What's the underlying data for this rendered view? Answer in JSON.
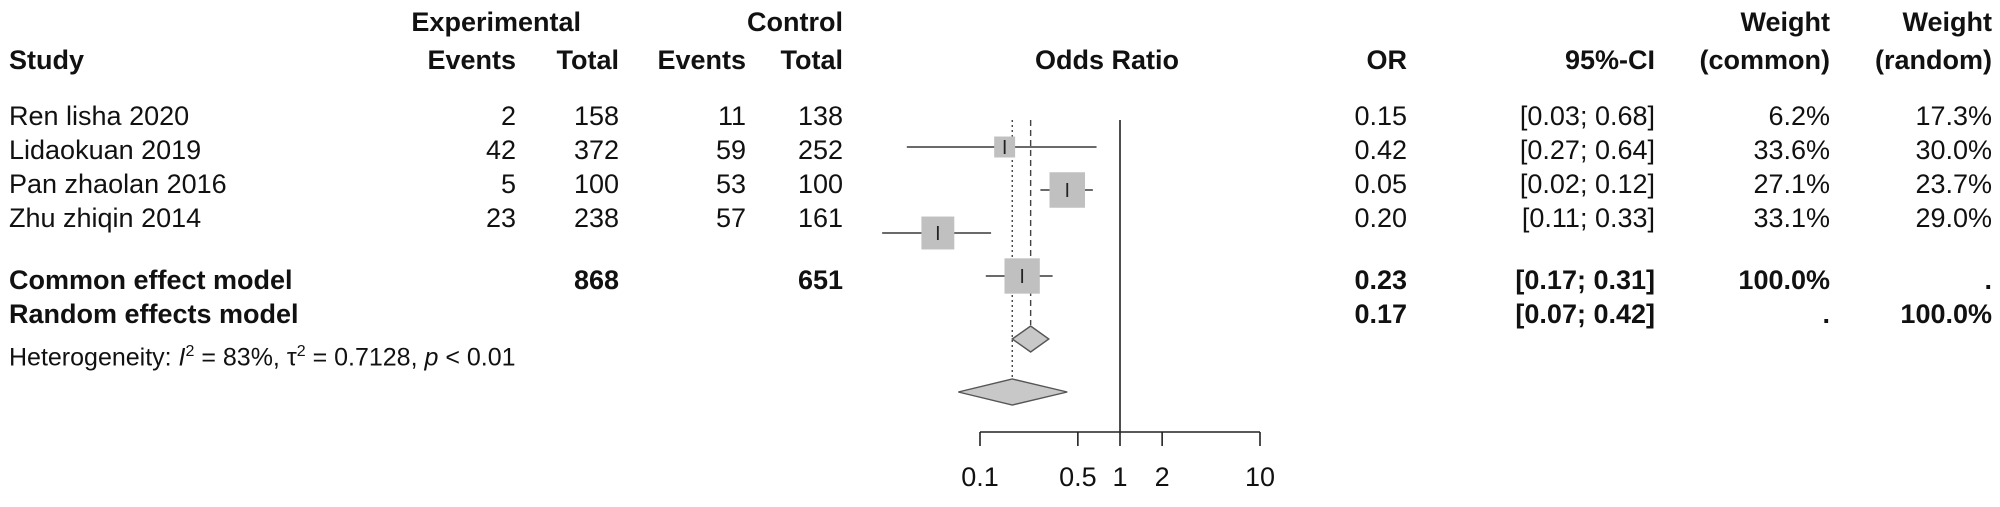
{
  "headers": {
    "study": "Study",
    "experimental": "Experimental",
    "control": "Control",
    "events": "Events",
    "total": "Total",
    "odds_ratio": "Odds Ratio",
    "or": "OR",
    "ci": "95%-CI",
    "weight": "Weight",
    "common": "(common)",
    "random": "(random)"
  },
  "studies": [
    {
      "name": "Ren lisha 2020",
      "exp_events": "2",
      "exp_total": "158",
      "ctrl_events": "11",
      "ctrl_total": "138",
      "or": "0.15",
      "ci": "[0.03; 0.68]",
      "w_common": "6.2%",
      "w_random": "17.3%"
    },
    {
      "name": "Lidaokuan 2019",
      "exp_events": "42",
      "exp_total": "372",
      "ctrl_events": "59",
      "ctrl_total": "252",
      "or": "0.42",
      "ci": "[0.27; 0.64]",
      "w_common": "33.6%",
      "w_random": "30.0%"
    },
    {
      "name": "Pan zhaolan 2016",
      "exp_events": "5",
      "exp_total": "100",
      "ctrl_events": "53",
      "ctrl_total": "100",
      "or": "0.05",
      "ci": "[0.02; 0.12]",
      "w_common": "27.1%",
      "w_random": "23.7%"
    },
    {
      "name": "Zhu zhiqin 2014",
      "exp_events": "23",
      "exp_total": "238",
      "ctrl_events": "57",
      "ctrl_total": "161",
      "or": "0.20",
      "ci": "[0.11; 0.33]",
      "w_common": "33.1%",
      "w_random": "29.0%"
    }
  ],
  "common_model": {
    "label": "Common effect model",
    "exp_total": "868",
    "ctrl_total": "651",
    "or": "0.23",
    "ci": "[0.17; 0.31]",
    "w_common": "100.0%",
    "w_random": "."
  },
  "random_model": {
    "label": "Random effects model",
    "or": "0.17",
    "ci": "[0.07; 0.42]",
    "w_common": ".",
    "w_random": "100.0%"
  },
  "heterogeneity": {
    "prefix": "Heterogeneity: ",
    "i2_symbol": "I",
    "i2_sup": "2",
    "i2_value": " = 83%, ",
    "tau_symbol": "τ",
    "tau_sup": "2",
    "tau_value": " = 0.7128, ",
    "p_symbol": "p",
    "p_value": " < 0.01"
  },
  "chart_data": {
    "type": "forest",
    "scale": "log",
    "x_range": [
      0.1,
      10
    ],
    "ticks": [
      {
        "value": 0.1,
        "label": "0.1"
      },
      {
        "value": 0.5,
        "label": "0.5"
      },
      {
        "value": 1,
        "label": "1"
      },
      {
        "value": 2,
        "label": "2"
      },
      {
        "value": 10,
        "label": "10"
      }
    ],
    "null_line": 1,
    "common_estimate": 0.23,
    "random_estimate": 0.17,
    "studies": [
      {
        "or": 0.15,
        "lower": 0.03,
        "upper": 0.68,
        "weight_common": 6.2
      },
      {
        "or": 0.42,
        "lower": 0.27,
        "upper": 0.64,
        "weight_common": 33.6
      },
      {
        "or": 0.05,
        "lower": 0.02,
        "upper": 0.12,
        "weight_common": 27.1
      },
      {
        "or": 0.2,
        "lower": 0.11,
        "upper": 0.33,
        "weight_common": 33.1
      }
    ],
    "common": {
      "or": 0.23,
      "lower": 0.17,
      "upper": 0.31
    },
    "random": {
      "or": 0.17,
      "lower": 0.07,
      "upper": 0.42
    },
    "colors": {
      "box": "#c0c0c0",
      "diamond": "#c8c8c8",
      "line": "#555555",
      "axis": "#222222"
    }
  }
}
